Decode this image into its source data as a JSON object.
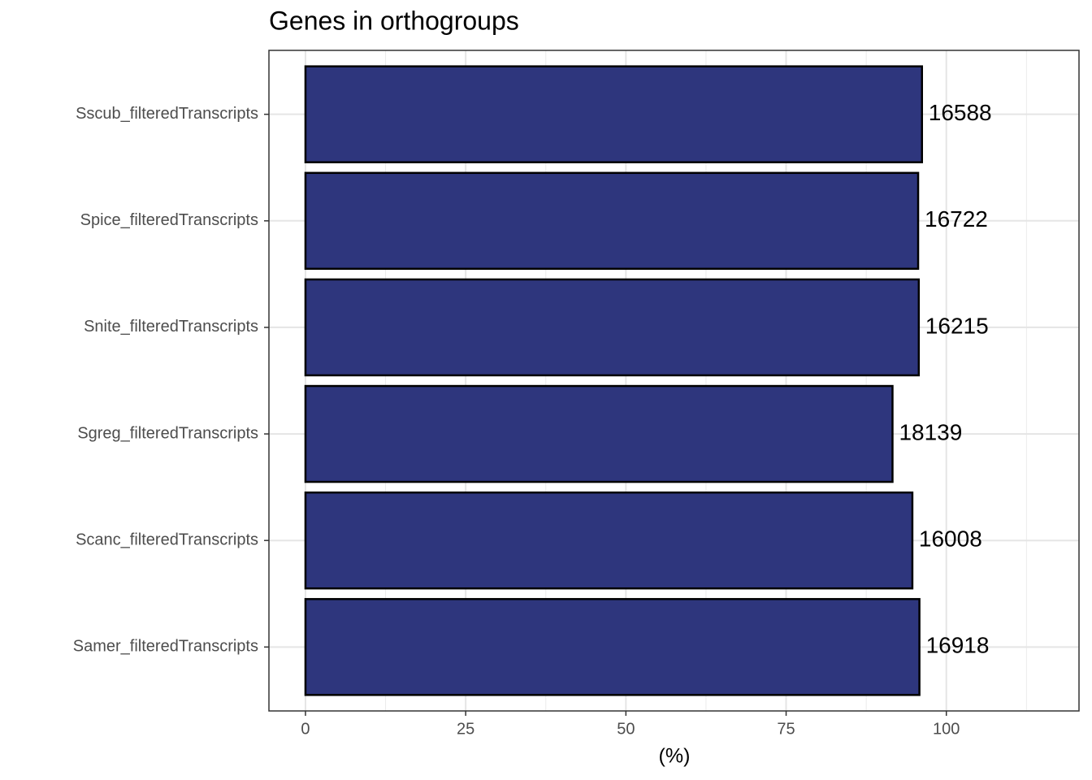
{
  "chart_data": {
    "type": "barh",
    "title": "Genes in orthogroups",
    "xlabel": "(%)",
    "categories": [
      "Sscub_filteredTranscripts",
      "Spice_filteredTranscripts",
      "Snite_filteredTranscripts",
      "Sgreg_filteredTranscripts",
      "Scanc_filteredTranscripts",
      "Samer_filteredTranscripts"
    ],
    "values": [
      96.2,
      95.6,
      95.7,
      91.6,
      94.7,
      95.8
    ],
    "counts": [
      16588,
      16722,
      16215,
      18139,
      16008,
      16918
    ],
    "color": "#2e367d",
    "xlim": [
      -5.7,
      120.7
    ],
    "xticks": [
      0,
      25,
      50,
      75,
      100
    ],
    "xminor": [
      12.5,
      37.5,
      62.5,
      87.5,
      112.5
    ],
    "grid": true
  }
}
